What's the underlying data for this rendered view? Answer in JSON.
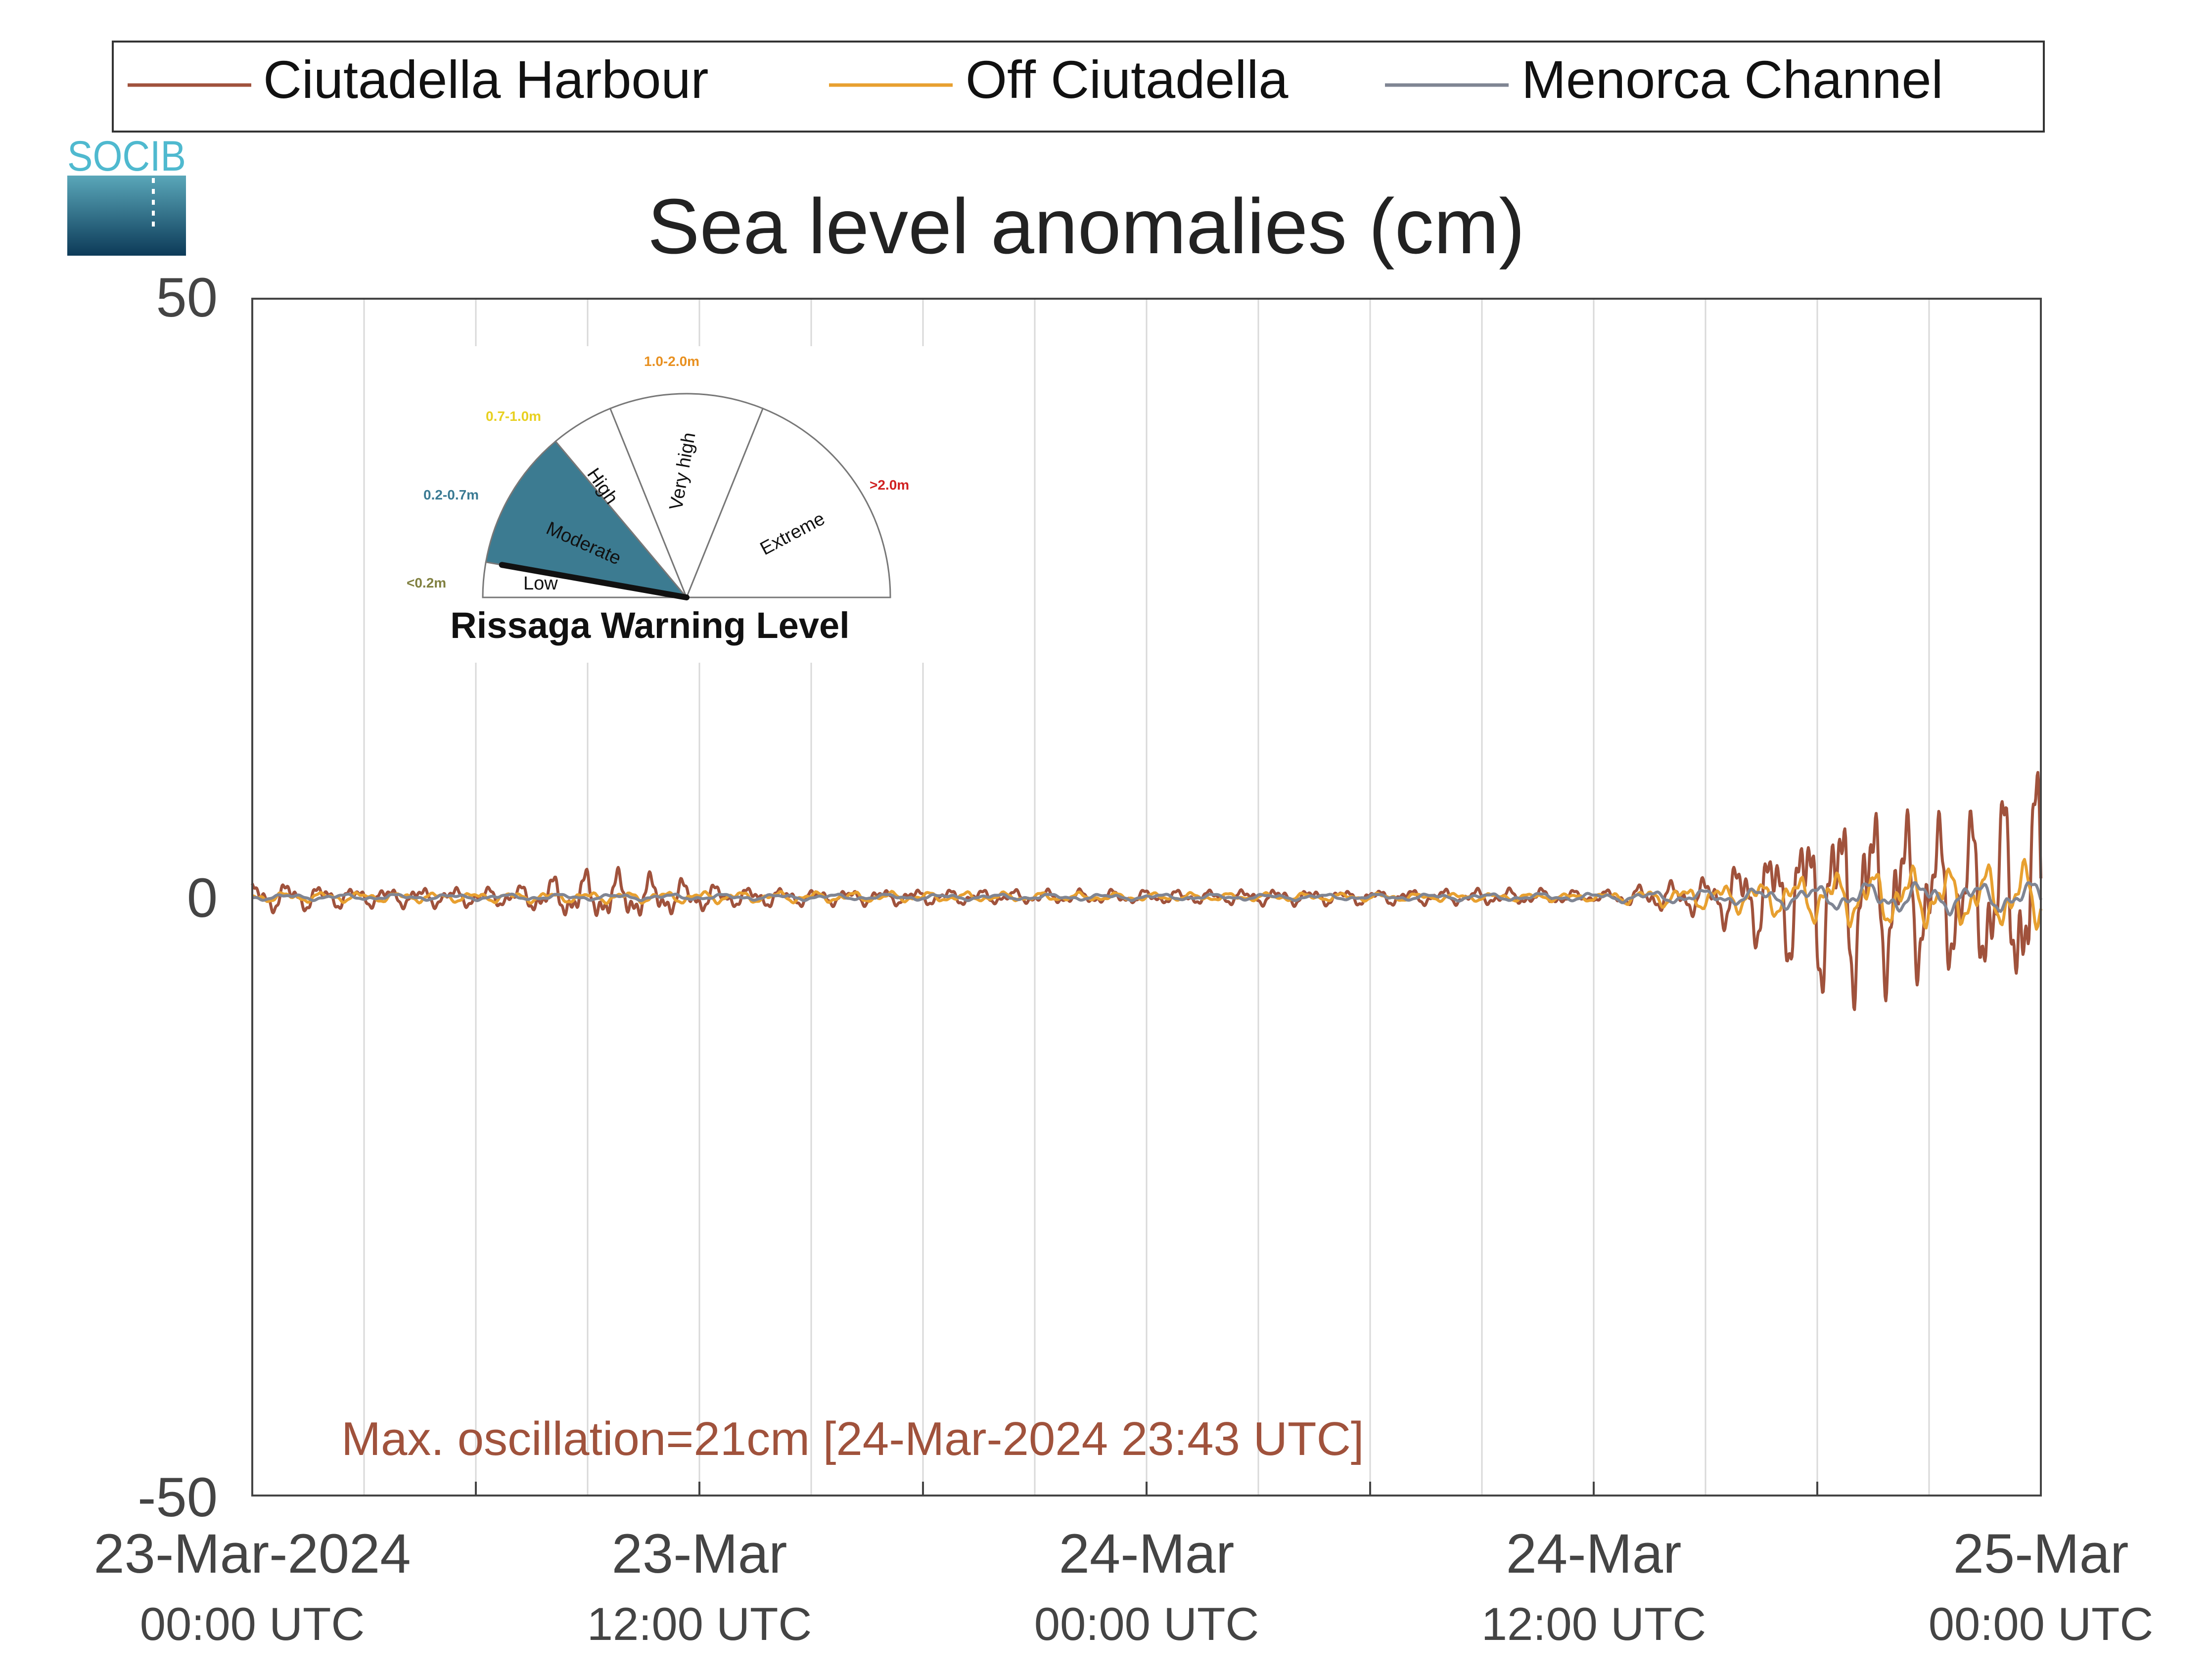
{
  "legend": [
    {
      "label": "Ciutadella Harbour",
      "color": "#a0523c"
    },
    {
      "label": "Off Ciutadella",
      "color": "#e8a030"
    },
    {
      "label": "Menorca Channel",
      "color": "#7f8593"
    }
  ],
  "logo": {
    "text": "SOCIB"
  },
  "chart_data": {
    "type": "line",
    "title": "Sea level anomalies (cm)",
    "ylim": [
      -50,
      50
    ],
    "yticks": [
      50,
      0,
      -50
    ],
    "x_range_hours": [
      0,
      48
    ],
    "xticks": [
      {
        "hour": 0,
        "line1": "23-Mar-2024",
        "line2": "00:00 UTC"
      },
      {
        "hour": 12,
        "line1": "23-Mar",
        "line2": "12:00 UTC"
      },
      {
        "hour": 24,
        "line1": "24-Mar",
        "line2": "00:00 UTC"
      },
      {
        "hour": 36,
        "line1": "24-Mar",
        "line2": "12:00 UTC"
      },
      {
        "hour": 48,
        "line1": "25-Mar",
        "line2": "00:00 UTC"
      }
    ],
    "grid": true,
    "series": [
      {
        "name": "Ciutadella Harbour",
        "color": "#a0523c",
        "x": [
          0,
          1,
          2,
          3,
          4,
          5,
          6,
          7,
          8,
          9,
          10,
          11,
          12,
          13,
          14,
          15,
          16,
          17,
          18,
          19,
          20,
          21,
          22,
          23,
          24,
          25,
          26,
          27,
          28,
          29,
          30,
          31,
          32,
          33,
          34,
          35,
          36,
          37,
          38,
          39,
          40,
          41,
          42,
          43,
          44,
          45,
          46,
          47,
          48
        ],
        "amplitude": [
          1.5,
          1.5,
          1.2,
          1.0,
          1.0,
          1.0,
          1.0,
          1.0,
          2.0,
          2.5,
          2.5,
          2.0,
          1.5,
          1.0,
          1.0,
          0.8,
          0.8,
          0.8,
          0.8,
          0.8,
          0.7,
          0.7,
          0.7,
          0.7,
          0.7,
          0.7,
          0.7,
          0.8,
          0.8,
          0.8,
          0.8,
          0.8,
          0.8,
          0.8,
          0.8,
          0.8,
          0.5,
          1.0,
          1.5,
          2.0,
          4.0,
          6.0,
          9.0,
          10.0,
          9.0,
          8.0,
          8.0,
          10.0,
          12.0
        ],
        "offset": [
          0,
          0,
          0,
          0,
          0,
          0,
          0,
          0,
          0,
          0,
          0,
          0,
          0,
          0,
          0,
          0,
          0,
          0,
          0,
          0,
          0,
          0,
          0,
          0,
          0,
          0,
          0,
          0,
          0,
          0,
          0,
          0,
          0,
          0,
          0,
          0,
          0,
          0,
          0,
          0,
          0,
          0,
          0,
          0,
          0,
          0,
          0,
          0,
          0
        ]
      },
      {
        "name": "Off Ciutadella",
        "color": "#e8a030",
        "x": [
          0,
          6,
          12,
          18,
          24,
          30,
          36,
          40,
          42,
          44,
          46,
          48
        ],
        "amplitude": [
          0.5,
          0.5,
          0.6,
          0.5,
          0.4,
          0.4,
          0.4,
          1.5,
          2.5,
          3.0,
          3.0,
          3.5
        ],
        "offset": [
          0,
          0,
          0,
          0,
          0,
          0,
          0,
          0,
          0,
          0,
          0,
          0
        ]
      },
      {
        "name": "Menorca Channel",
        "color": "#7f8593",
        "x": [
          0,
          6,
          12,
          18,
          24,
          30,
          36,
          40,
          42,
          44,
          46,
          48
        ],
        "amplitude": [
          0.3,
          0.3,
          0.3,
          0.3,
          0.3,
          0.3,
          0.4,
          0.8,
          1.2,
          1.5,
          1.5,
          1.5
        ],
        "offset": [
          0,
          0,
          0,
          0,
          0,
          0,
          0,
          0,
          0,
          0,
          0,
          0
        ]
      }
    ],
    "annotation": "Max. oscillation=21cm [24-Mar-2024 23:43 UTC]",
    "annotation_color": "#a0523c"
  },
  "inset": {
    "title": "Rissaga Warning Level",
    "levels": [
      {
        "label": "Low",
        "range": "<0.2m",
        "range_color": "#808040",
        "fill": "#ffffff"
      },
      {
        "label": "Moderate",
        "range": "0.2-0.7m",
        "range_color": "#3a7a93",
        "fill": "#3c7b91"
      },
      {
        "label": "High",
        "range": "0.7-1.0m",
        "range_color": "#e8d020",
        "fill": "#ffffff"
      },
      {
        "label": "Very high",
        "range": "1.0-2.0m",
        "range_color": "#e89020",
        "fill": "#ffffff"
      },
      {
        "label": "Extreme",
        "range": ">2.0m",
        "range_color": "#d02020",
        "fill": "#ffffff"
      }
    ]
  }
}
